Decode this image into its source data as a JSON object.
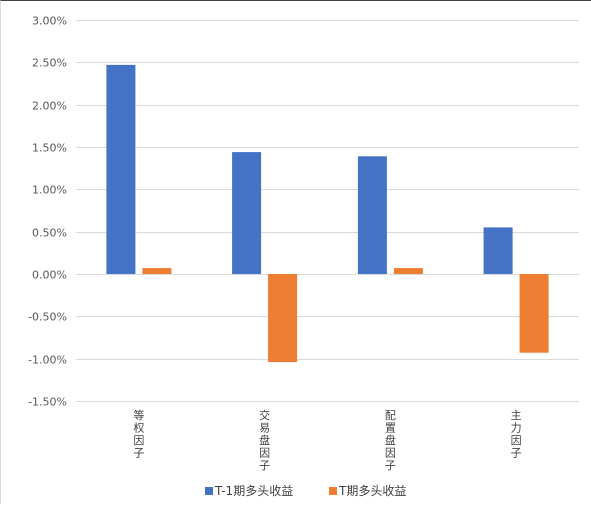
{
  "chart_data": {
    "type": "bar",
    "title": "",
    "xlabel": "",
    "ylabel": "",
    "categories": [
      "等权因子",
      "交易盘因子",
      "配置盘因子",
      "主力因子"
    ],
    "series": [
      {
        "name": "T-1期多头收益",
        "color": "#4472C4",
        "values": [
          0.0247,
          0.0144,
          0.0139,
          0.0055
        ]
      },
      {
        "name": "T期多头收益",
        "color": "#ED7D31",
        "values": [
          0.0007,
          -0.0104,
          0.0007,
          -0.0093
        ]
      }
    ],
    "ylim": [
      -0.015,
      0.03
    ],
    "yticks": [
      "3.00%",
      "2.50%",
      "2.00%",
      "1.50%",
      "1.00%",
      "0.50%",
      "0.00%",
      "-0.50%",
      "-1.00%",
      "-1.50%"
    ],
    "grid": true,
    "legend_position": "bottom"
  }
}
